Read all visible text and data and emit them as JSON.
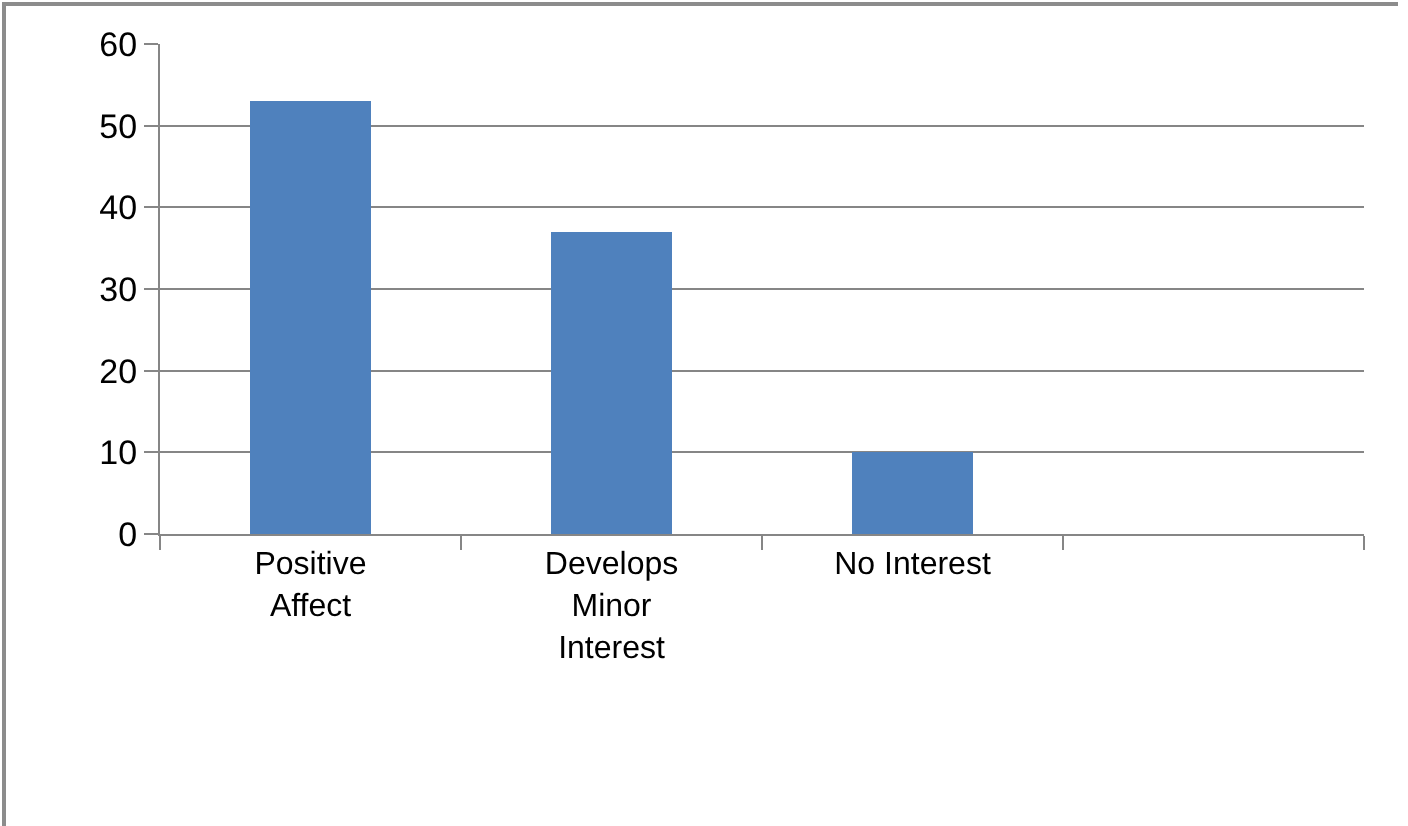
{
  "chart_data": {
    "type": "bar",
    "categories": [
      "Positive Affect",
      "Develops Minor Interest",
      "No Interest",
      null
    ],
    "values": [
      53,
      37,
      10,
      null
    ],
    "color": "#4f81bd",
    "ylim": [
      0,
      60
    ],
    "yticks": [
      0,
      10,
      20,
      30,
      40,
      50,
      60
    ],
    "grid": "y"
  }
}
